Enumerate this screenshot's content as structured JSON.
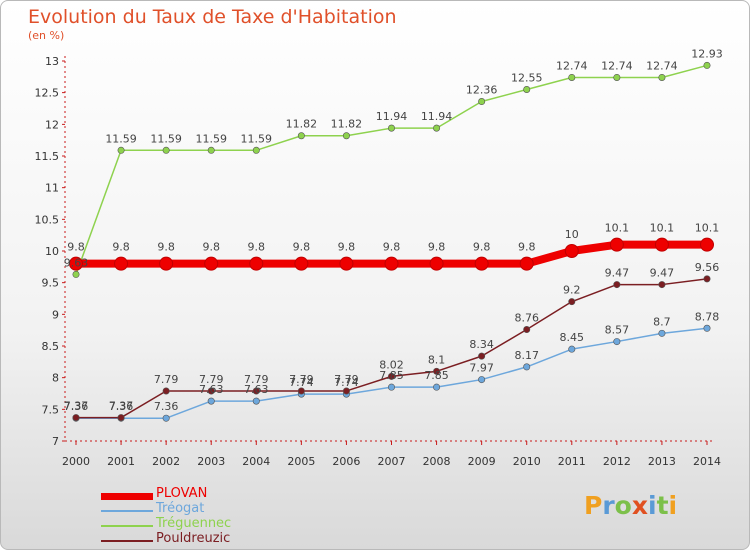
{
  "title": "Evolution du Taux de Taxe d'Habitation",
  "subtitle": "(en %)",
  "logo_text": "Proxiti",
  "colors": {
    "title": "#e0502a",
    "axis": "#c91a1a"
  },
  "chart_data": {
    "type": "line",
    "x": [
      2000,
      2001,
      2002,
      2003,
      2004,
      2005,
      2006,
      2007,
      2008,
      2009,
      2010,
      2011,
      2012,
      2013,
      2014
    ],
    "ylim": [
      7,
      13
    ],
    "yticks": [
      7,
      7.5,
      8,
      8.5,
      9,
      9.5,
      10,
      10.5,
      11,
      11.5,
      12,
      12.5,
      13
    ],
    "grid": false,
    "legend_position": "bottom-left",
    "series": [
      {
        "name": "Tréguennec",
        "color": "#8ed24e",
        "width": 1.5,
        "values": [
          9.63,
          11.59,
          11.59,
          11.59,
          11.59,
          11.82,
          11.82,
          11.94,
          11.94,
          12.36,
          12.55,
          12.74,
          12.74,
          12.74,
          12.93
        ],
        "labels": [
          "9.63",
          "11.59",
          "11.59",
          "11.59",
          "11.59",
          "11.82",
          "11.82",
          "11.94",
          "11.94",
          "12.36",
          "12.55",
          "12.74",
          "12.74",
          "12.74",
          "12.93"
        ]
      },
      {
        "name": "Tréogat",
        "color": "#6da7dc",
        "width": 1.5,
        "values": [
          7.36,
          7.36,
          7.36,
          7.63,
          7.63,
          7.74,
          7.74,
          7.85,
          7.85,
          7.97,
          8.17,
          8.45,
          8.57,
          8.7,
          8.78
        ],
        "labels": [
          "7.36",
          "7.36",
          "7.36",
          "7.63",
          "7.63",
          "7.74",
          "7.74",
          "7.85",
          "7.85",
          "7.97",
          "8.17",
          "8.45",
          "8.57",
          "8.7",
          "8.78"
        ]
      },
      {
        "name": "Pouldreuzic",
        "color": "#7b1e22",
        "width": 1.5,
        "values": [
          7.37,
          7.37,
          7.79,
          7.79,
          7.79,
          7.79,
          7.79,
          8.02,
          8.1,
          8.34,
          8.76,
          9.2,
          9.47,
          9.47,
          9.56
        ],
        "labels": [
          "7.37",
          "7.37",
          "7.79",
          "7.79",
          "7.79",
          "7.79",
          "7.79",
          "8.02",
          "8.1",
          "8.34",
          "8.76",
          "9.2",
          "9.47",
          "9.47",
          "9.56"
        ]
      },
      {
        "name": "PLOVAN",
        "color": "#ee0000",
        "width": 8,
        "values": [
          9.8,
          9.8,
          9.8,
          9.8,
          9.8,
          9.8,
          9.8,
          9.8,
          9.8,
          9.8,
          9.8,
          10,
          10.1,
          10.1,
          10.1
        ],
        "labels": [
          "9.8",
          "9.8",
          "9.8",
          "9.8",
          "9.8",
          "9.8",
          "9.8",
          "9.8",
          "9.8",
          "9.8",
          "9.8",
          "10",
          "10.1",
          "10.1",
          "10.1"
        ]
      }
    ],
    "legend": [
      {
        "name": "PLOVAN",
        "color": "#ee0000"
      },
      {
        "name": "Tréogat",
        "color": "#6da7dc"
      },
      {
        "name": "Tréguennec",
        "color": "#8ed24e"
      },
      {
        "name": "Pouldreuzic",
        "color": "#7b1e22"
      }
    ]
  }
}
